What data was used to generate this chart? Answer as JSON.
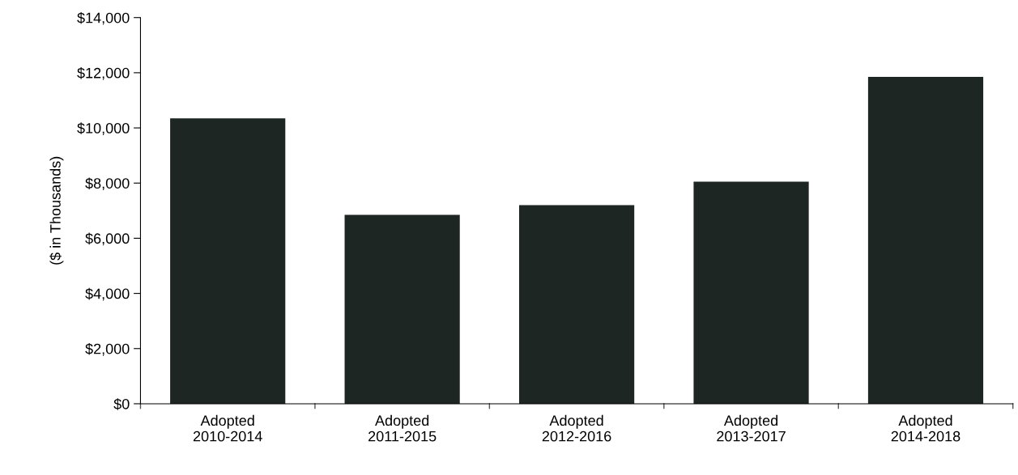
{
  "chart_data": {
    "type": "bar",
    "ylabel": "($ in Thousands)",
    "categories": [
      "Adopted\n2010-2014",
      "Adopted\n2011-2015",
      "Adopted\n2012-2016",
      "Adopted\n2013-2017",
      "Adopted\n2014-2018"
    ],
    "values": [
      10350,
      6850,
      7200,
      8050,
      11850
    ],
    "color": "#1e2624",
    "ylim": [
      0,
      14000
    ],
    "yticks": [
      {
        "value": 0,
        "label": "$0"
      },
      {
        "value": 2000,
        "label": "$2,000"
      },
      {
        "value": 4000,
        "label": "$4,000"
      },
      {
        "value": 6000,
        "label": "$6,000"
      },
      {
        "value": 8000,
        "label": "$8,000"
      },
      {
        "value": 10000,
        "label": "$10,000"
      },
      {
        "value": 12000,
        "label": "$12,000"
      },
      {
        "value": 14000,
        "label": "$14,000"
      }
    ],
    "grid": false
  }
}
